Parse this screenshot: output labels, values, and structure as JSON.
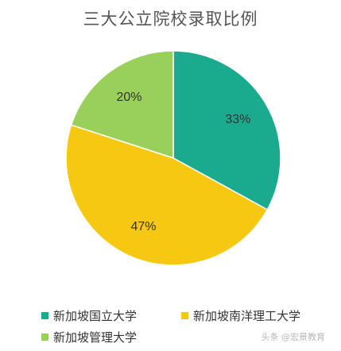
{
  "chart_data": {
    "type": "pie",
    "title": "三大公立院校录取比例",
    "categories": [
      "新加坡国立大学",
      "新加坡南洋理工大学",
      "新加坡管理大学"
    ],
    "values": [
      33,
      47,
      20
    ],
    "value_labels": [
      "33%",
      "47%",
      "20%"
    ],
    "colors": [
      "#1aab8f",
      "#f6c812",
      "#98d05a"
    ],
    "legend_position": "bottom"
  },
  "watermark": "头条 @宏景教育"
}
